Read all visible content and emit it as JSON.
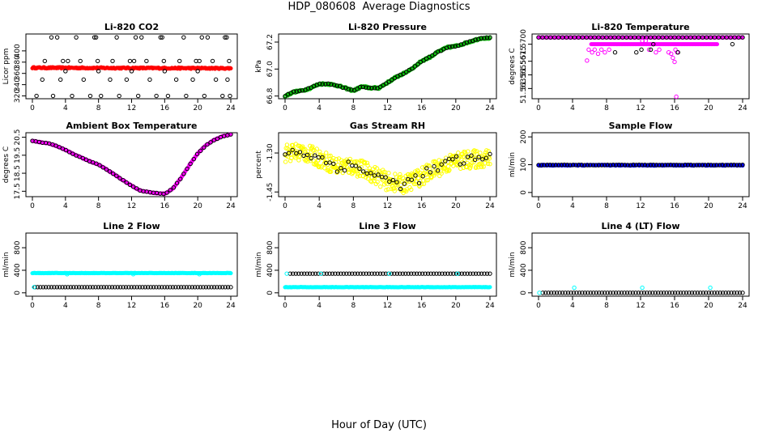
{
  "figure": {
    "title": "HDP_080608  Average Diagnostics",
    "xlabel": "Hour of Day (UTC)"
  },
  "chart_data": [
    {
      "id": "co2",
      "type": "scatter",
      "title": "Li-820 CO2",
      "ylabel": "Licor ppm",
      "xlim": [
        0,
        24
      ],
      "ylim": [
        315,
        430
      ],
      "yticks": [
        320,
        340,
        360,
        380,
        400
      ],
      "ytick_labels": [
        "320",
        "340",
        "360",
        "380",
        "400"
      ],
      "series": [
        {
          "name": "co2-main",
          "color": "#ff0000",
          "marker": "filled",
          "gen": "line",
          "x0": 0,
          "x1": 24,
          "y0": 370,
          "y1": 369,
          "n": 240,
          "noise": 1.2
        },
        {
          "name": "co2-spikes",
          "color": "#000000",
          "marker": "open",
          "x": [
            2.3,
            3.0,
            5.3,
            7.5,
            7.7,
            10.2,
            12.5,
            13.2,
            15.5,
            15.7,
            18.3,
            20.5,
            21.2,
            23.3,
            23.5
          ],
          "y": [
            424,
            424,
            424,
            424,
            424,
            424,
            424,
            424,
            424,
            424,
            424,
            424,
            424,
            424,
            424
          ]
        },
        {
          "name": "co2-upper",
          "color": "#000000",
          "marker": "open",
          "x": [
            1.5,
            3.7,
            4.3,
            5.8,
            7.9,
            9.7,
            11.8,
            12.3,
            13.8,
            15.9,
            17.8,
            19.8,
            20.2,
            21.8,
            23.8
          ],
          "y": [
            382,
            382,
            382,
            382,
            382,
            382,
            382,
            382,
            382,
            382,
            382,
            382,
            382,
            382,
            382
          ]
        },
        {
          "name": "co2-mid",
          "color": "#000000",
          "marker": "open",
          "x": [
            1.2,
            3.4,
            4.0,
            6.2,
            8.0,
            9.4,
            11.4,
            12.0,
            14.2,
            16.0,
            17.4,
            19.4,
            20.0,
            22.2,
            23.6
          ],
          "y": [
            349,
            349,
            364,
            349,
            364,
            349,
            349,
            364,
            349,
            364,
            349,
            349,
            364,
            349,
            349
          ]
        },
        {
          "name": "co2-low",
          "color": "#000000",
          "marker": "open",
          "x": [
            0.5,
            2.5,
            4.8,
            7.0,
            8.3,
            10.5,
            12.8,
            15.0,
            16.4,
            18.6,
            20.8,
            23.0,
            23.9
          ],
          "y": [
            320,
            320,
            320,
            320,
            320,
            320,
            320,
            320,
            320,
            320,
            320,
            320,
            320
          ]
        }
      ]
    },
    {
      "id": "pressure",
      "type": "scatter",
      "title": "Li-820 Pressure",
      "ylabel": "kPa",
      "xlim": [
        0,
        24
      ],
      "ylim": [
        66.78,
        67.26
      ],
      "yticks": [
        66.8,
        67.0,
        67.2
      ],
      "ytick_labels": [
        "66.8",
        "67.0",
        "67.2"
      ],
      "profile_x": [
        0,
        1,
        2,
        3,
        4,
        5,
        6,
        7,
        8,
        9,
        10,
        11,
        12,
        13,
        14,
        15,
        16,
        17,
        18,
        19,
        20,
        21,
        22,
        23,
        24
      ],
      "profile_y": [
        66.8,
        66.83,
        66.84,
        66.86,
        66.89,
        66.89,
        66.88,
        66.86,
        66.84,
        66.87,
        66.86,
        66.86,
        66.9,
        66.94,
        66.97,
        67.01,
        67.06,
        67.09,
        67.13,
        67.16,
        67.17,
        67.19,
        67.21,
        67.23,
        67.23
      ],
      "series": [
        {
          "name": "pressure-main",
          "color": "#00bb00",
          "marker": "open",
          "gen": "profile",
          "n": 240,
          "noise": 0.006
        },
        {
          "name": "pressure-avg",
          "color": "#000000",
          "marker": "open",
          "gen": "profile",
          "n": 72,
          "noise": 0.003
        }
      ]
    },
    {
      "id": "temperature",
      "type": "scatter",
      "title": "Li-820 Temperature",
      "ylabel": "degrees C",
      "xlim": [
        0,
        24
      ],
      "ylim": [
        51.562,
        51.5715
      ],
      "yticks": [
        51.5635,
        51.5655,
        51.5675,
        51.57
      ],
      "ytick_labels": [
        "51.5635",
        "51.5655",
        "51.5675",
        "51.5700"
      ],
      "series": [
        {
          "name": "temp-top-band",
          "color": "#ff00ff",
          "marker": "filled",
          "gen": "line",
          "x0": 0,
          "x1": 24,
          "y0": 51.571,
          "y1": 51.571,
          "n": 240,
          "noise": 0
        },
        {
          "name": "temp-mid-band",
          "color": "#ff00ff",
          "marker": "filled",
          "gen": "line",
          "x0": 6.2,
          "x1": 21,
          "y0": 51.57,
          "y1": 51.57,
          "n": 110,
          "noise": 0
        },
        {
          "name": "temp-avg-top",
          "color": "#000000",
          "marker": "open",
          "gen": "line",
          "x0": 0,
          "x1": 24,
          "y0": 51.571,
          "y1": 51.571,
          "n": 52,
          "noise": 0
        },
        {
          "name": "temp-scatter",
          "color": "#ff00ff",
          "marker": "open",
          "x": [
            5.9,
            6.3,
            6.6,
            7.0,
            7.4,
            7.8,
            8.3,
            12.2,
            12.6,
            13.0,
            13.8,
            14.2,
            15.3,
            15.6,
            15.8,
            16.0,
            16.1,
            16.3,
            16.2,
            5.7
          ],
          "y": [
            51.5692,
            51.5688,
            51.5692,
            51.5686,
            51.5692,
            51.5688,
            51.5692,
            51.5705,
            51.5705,
            51.5692,
            51.5688,
            51.5692,
            51.5688,
            51.5686,
            51.568,
            51.5674,
            51.5692,
            51.5688,
            51.5623,
            51.5676
          ]
        },
        {
          "name": "temp-avg-scatter",
          "color": "#000000",
          "marker": "open",
          "x": [
            9.0,
            11.5,
            12.1,
            13.2,
            13.5,
            16.4,
            22.8
          ],
          "y": [
            51.5688,
            51.5688,
            51.5692,
            51.5692,
            51.57,
            51.5688,
            51.57
          ]
        }
      ]
    },
    {
      "id": "ambient",
      "type": "scatter",
      "title": "Ambient Box Temperature",
      "ylabel": "degrees C",
      "xlim": [
        0,
        24
      ],
      "ylim": [
        17.2,
        20.75
      ],
      "yticks": [
        17.5,
        18.5,
        19.5,
        20.5
      ],
      "ytick_labels": [
        "17.5",
        "18.5",
        "19.5",
        "20.5"
      ],
      "profile_x": [
        0,
        1,
        2,
        3,
        4,
        5,
        6,
        7,
        8,
        9,
        10,
        11,
        12,
        13,
        14,
        15,
        16,
        17,
        18,
        19,
        20,
        21,
        22,
        23,
        24
      ],
      "profile_y": [
        20.3,
        20.22,
        20.15,
        20.0,
        19.8,
        19.55,
        19.35,
        19.15,
        18.98,
        18.7,
        18.4,
        18.1,
        17.8,
        17.55,
        17.45,
        17.4,
        17.35,
        17.65,
        18.25,
        18.95,
        19.6,
        20.05,
        20.35,
        20.55,
        20.65
      ],
      "series": [
        {
          "name": "ambient-main",
          "color": "#ff00ff",
          "marker": "filled",
          "gen": "profile",
          "n": 240,
          "noise": 0.02
        },
        {
          "name": "ambient-avg",
          "color": "#000000",
          "marker": "open",
          "gen": "profile",
          "n": 60,
          "noise": 0.01
        }
      ]
    },
    {
      "id": "rh",
      "type": "scatter",
      "title": "Gas Stream RH",
      "ylabel": "percent",
      "xlim": [
        0,
        24
      ],
      "ylim": [
        -1.468,
        -1.222
      ],
      "yticks": [
        -1.45,
        -1.3
      ],
      "ytick_labels": [
        "-1.45",
        "-1.30"
      ],
      "profile_x": [
        0,
        2,
        4,
        6,
        8,
        10,
        12,
        14,
        16,
        18,
        20,
        22,
        24
      ],
      "profile_y": [
        -1.3,
        -1.295,
        -1.32,
        -1.35,
        -1.35,
        -1.375,
        -1.41,
        -1.42,
        -1.39,
        -1.355,
        -1.33,
        -1.325,
        -1.32
      ],
      "series": [
        {
          "name": "rh-main",
          "color": "#ffff00",
          "marker": "open",
          "gen": "profile",
          "n": 420,
          "noise": 0.035
        },
        {
          "name": "rh-avg",
          "color": "#000000",
          "marker": "open",
          "gen": "profile",
          "n": 56,
          "noise": 0.022
        }
      ]
    },
    {
      "id": "sampleflow",
      "type": "scatter",
      "title": "Sample Flow",
      "ylabel": "ml/min",
      "xlim": [
        0,
        24
      ],
      "ylim": [
        -15,
        215
      ],
      "yticks": [
        0,
        100,
        200
      ],
      "ytick_labels": [
        "0",
        "100",
        "200"
      ],
      "series": [
        {
          "name": "sample-main",
          "color": "#0000ff",
          "marker": "filled",
          "gen": "line",
          "x0": 0,
          "x1": 24,
          "y0": 98,
          "y1": 98,
          "n": 240,
          "noise": 1.5
        },
        {
          "name": "sample-avg",
          "color": "#000000",
          "marker": "open",
          "gen": "line",
          "x0": 0,
          "x1": 24,
          "y0": 99,
          "y1": 99,
          "n": 72,
          "noise": 0.8
        }
      ]
    },
    {
      "id": "line2",
      "type": "scatter",
      "title": "Line 2 Flow",
      "ylabel": "ml/min",
      "xlim": [
        0,
        24
      ],
      "ylim": [
        -60,
        1060
      ],
      "yticks": [
        0,
        400,
        800
      ],
      "ytick_labels": [
        "0",
        "400",
        "800"
      ],
      "series": [
        {
          "name": "line2-high",
          "color": "#00ffff",
          "marker": "filled",
          "gen": "line",
          "x0": 0,
          "x1": 24,
          "y0": 350,
          "y1": 350,
          "n": 240,
          "noise": 3
        },
        {
          "name": "line2-low",
          "color": "#000000",
          "marker": "open",
          "gen": "line",
          "x0": 0.3,
          "x1": 24,
          "y0": 100,
          "y1": 100,
          "n": 72,
          "noise": 0
        },
        {
          "name": "line2-low-cyan",
          "color": "#00ffff",
          "marker": "open",
          "x": [
            0.2,
            4.2,
            12.2,
            20.2
          ],
          "y": [
            100,
            330,
            330,
            330
          ]
        }
      ]
    },
    {
      "id": "line3",
      "type": "scatter",
      "title": "Line 3 Flow",
      "ylabel": "ml/min",
      "xlim": [
        0,
        24
      ],
      "ylim": [
        -60,
        1060
      ],
      "yticks": [
        0,
        400,
        800
      ],
      "ytick_labels": [
        "0",
        "400",
        "800"
      ],
      "series": [
        {
          "name": "line3-low",
          "color": "#00ffff",
          "marker": "filled",
          "gen": "line",
          "x0": 0,
          "x1": 24,
          "y0": 100,
          "y1": 100,
          "n": 240,
          "noise": 3
        },
        {
          "name": "line3-high",
          "color": "#000000",
          "marker": "open",
          "gen": "line",
          "x0": 0.6,
          "x1": 24,
          "y0": 340,
          "y1": 340,
          "n": 72,
          "noise": 0
        },
        {
          "name": "line3-start",
          "color": "#00ffff",
          "marker": "open",
          "x": [
            0.2,
            4.2,
            12.2,
            20.2
          ],
          "y": [
            340,
            340,
            340,
            340
          ]
        }
      ]
    },
    {
      "id": "line4",
      "type": "scatter",
      "title": "Line 4 (LT) Flow",
      "ylabel": "ml/min",
      "xlim": [
        0,
        24
      ],
      "ylim": [
        -60,
        1060
      ],
      "yticks": [
        0,
        400,
        800
      ],
      "ytick_labels": [
        "0",
        "400",
        "800"
      ],
      "series": [
        {
          "name": "line4-zero",
          "color": "#000000",
          "marker": "open",
          "gen": "line",
          "x0": 0.5,
          "x1": 24,
          "y0": 0,
          "y1": 0,
          "n": 72,
          "noise": 0
        },
        {
          "name": "line4-cyan",
          "color": "#00ffff",
          "marker": "open",
          "x": [
            0.1,
            4.2,
            12.2,
            20.2
          ],
          "y": [
            0,
            90,
            90,
            90
          ]
        }
      ]
    }
  ],
  "xticks": [
    0,
    4,
    8,
    12,
    16,
    20,
    24
  ],
  "xtick_labels": [
    "0",
    "4",
    "8",
    "12",
    "16",
    "20",
    "24"
  ]
}
